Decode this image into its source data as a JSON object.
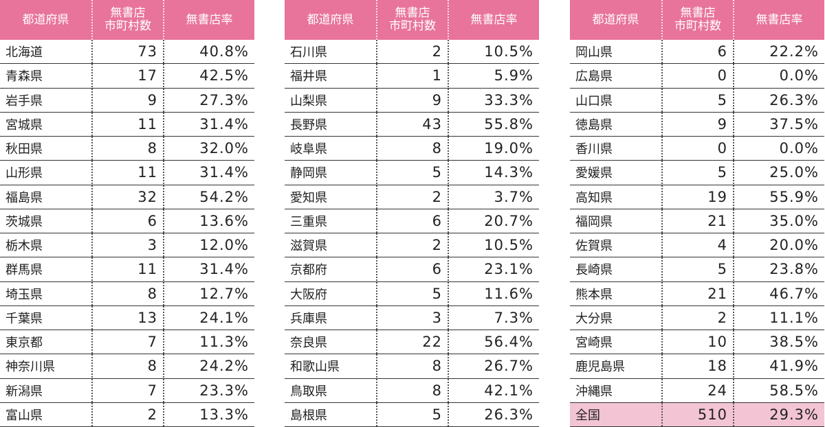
{
  "tables": [
    {
      "header": [
        "都道府県",
        "無書店\n市町村数",
        "無書店率"
      ],
      "rows": [
        [
          "北海道",
          "73",
          "40.8%"
        ],
        [
          "青森県",
          "17",
          "42.5%"
        ],
        [
          "岩手県",
          "9",
          "27.3%"
        ],
        [
          "宮城県",
          "11",
          "31.4%"
        ],
        [
          "秋田県",
          "8",
          "32.0%"
        ],
        [
          "山形県",
          "11",
          "31.4%"
        ],
        [
          "福島県",
          "32",
          "54.2%"
        ],
        [
          "茨城県",
          "6",
          "13.6%"
        ],
        [
          "栃木県",
          "3",
          "12.0%"
        ],
        [
          "群馬県",
          "11",
          "31.4%"
        ],
        [
          "埼玉県",
          "8",
          "12.7%"
        ],
        [
          "千葉県",
          "13",
          "24.1%"
        ],
        [
          "東京都",
          "7",
          "11.3%"
        ],
        [
          "神奈川県",
          "8",
          "24.2%"
        ],
        [
          "新潟県",
          "7",
          "23.3%"
        ],
        [
          "富山県",
          "2",
          "13.3%"
        ]
      ]
    },
    {
      "header": [
        "都道府県",
        "無書店\n市町村数",
        "無書店率"
      ],
      "rows": [
        [
          "石川県",
          "2",
          "10.5%"
        ],
        [
          "福井県",
          "1",
          "5.9%"
        ],
        [
          "山梨県",
          "9",
          "33.3%"
        ],
        [
          "長野県",
          "43",
          "55.8%"
        ],
        [
          "岐阜県",
          "8",
          "19.0%"
        ],
        [
          "静岡県",
          "5",
          "14.3%"
        ],
        [
          "愛知県",
          "2",
          "3.7%"
        ],
        [
          "三重県",
          "6",
          "20.7%"
        ],
        [
          "滋賀県",
          "2",
          "10.5%"
        ],
        [
          "京都府",
          "6",
          "23.1%"
        ],
        [
          "大阪府",
          "5",
          "11.6%"
        ],
        [
          "兵庫県",
          "3",
          "7.3%"
        ],
        [
          "奈良県",
          "22",
          "56.4%"
        ],
        [
          "和歌山県",
          "8",
          "26.7%"
        ],
        [
          "鳥取県",
          "8",
          "42.1%"
        ],
        [
          "島根県",
          "5",
          "26.3%"
        ]
      ]
    },
    {
      "header": [
        "都道府県",
        "無書店\n市町村数",
        "無書店率"
      ],
      "rows": [
        [
          "岡山県",
          "6",
          "22.2%"
        ],
        [
          "広島県",
          "0",
          "0.0%"
        ],
        [
          "山口県",
          "5",
          "26.3%"
        ],
        [
          "徳島県",
          "9",
          "37.5%"
        ],
        [
          "香川県",
          "0",
          "0.0%"
        ],
        [
          "愛媛県",
          "5",
          "25.0%"
        ],
        [
          "高知県",
          "19",
          "55.9%"
        ],
        [
          "福岡県",
          "21",
          "35.0%"
        ],
        [
          "佐賀県",
          "4",
          "20.0%"
        ],
        [
          "長崎県",
          "5",
          "23.8%"
        ],
        [
          "熊本県",
          "21",
          "46.7%"
        ],
        [
          "大分県",
          "2",
          "11.1%"
        ],
        [
          "宮崎県",
          "10",
          "38.5%"
        ],
        [
          "鹿児島県",
          "18",
          "41.9%"
        ],
        [
          "沖縄県",
          "24",
          "58.5%"
        ]
      ],
      "total": [
        "全国",
        "510",
        "29.3%"
      ]
    }
  ]
}
